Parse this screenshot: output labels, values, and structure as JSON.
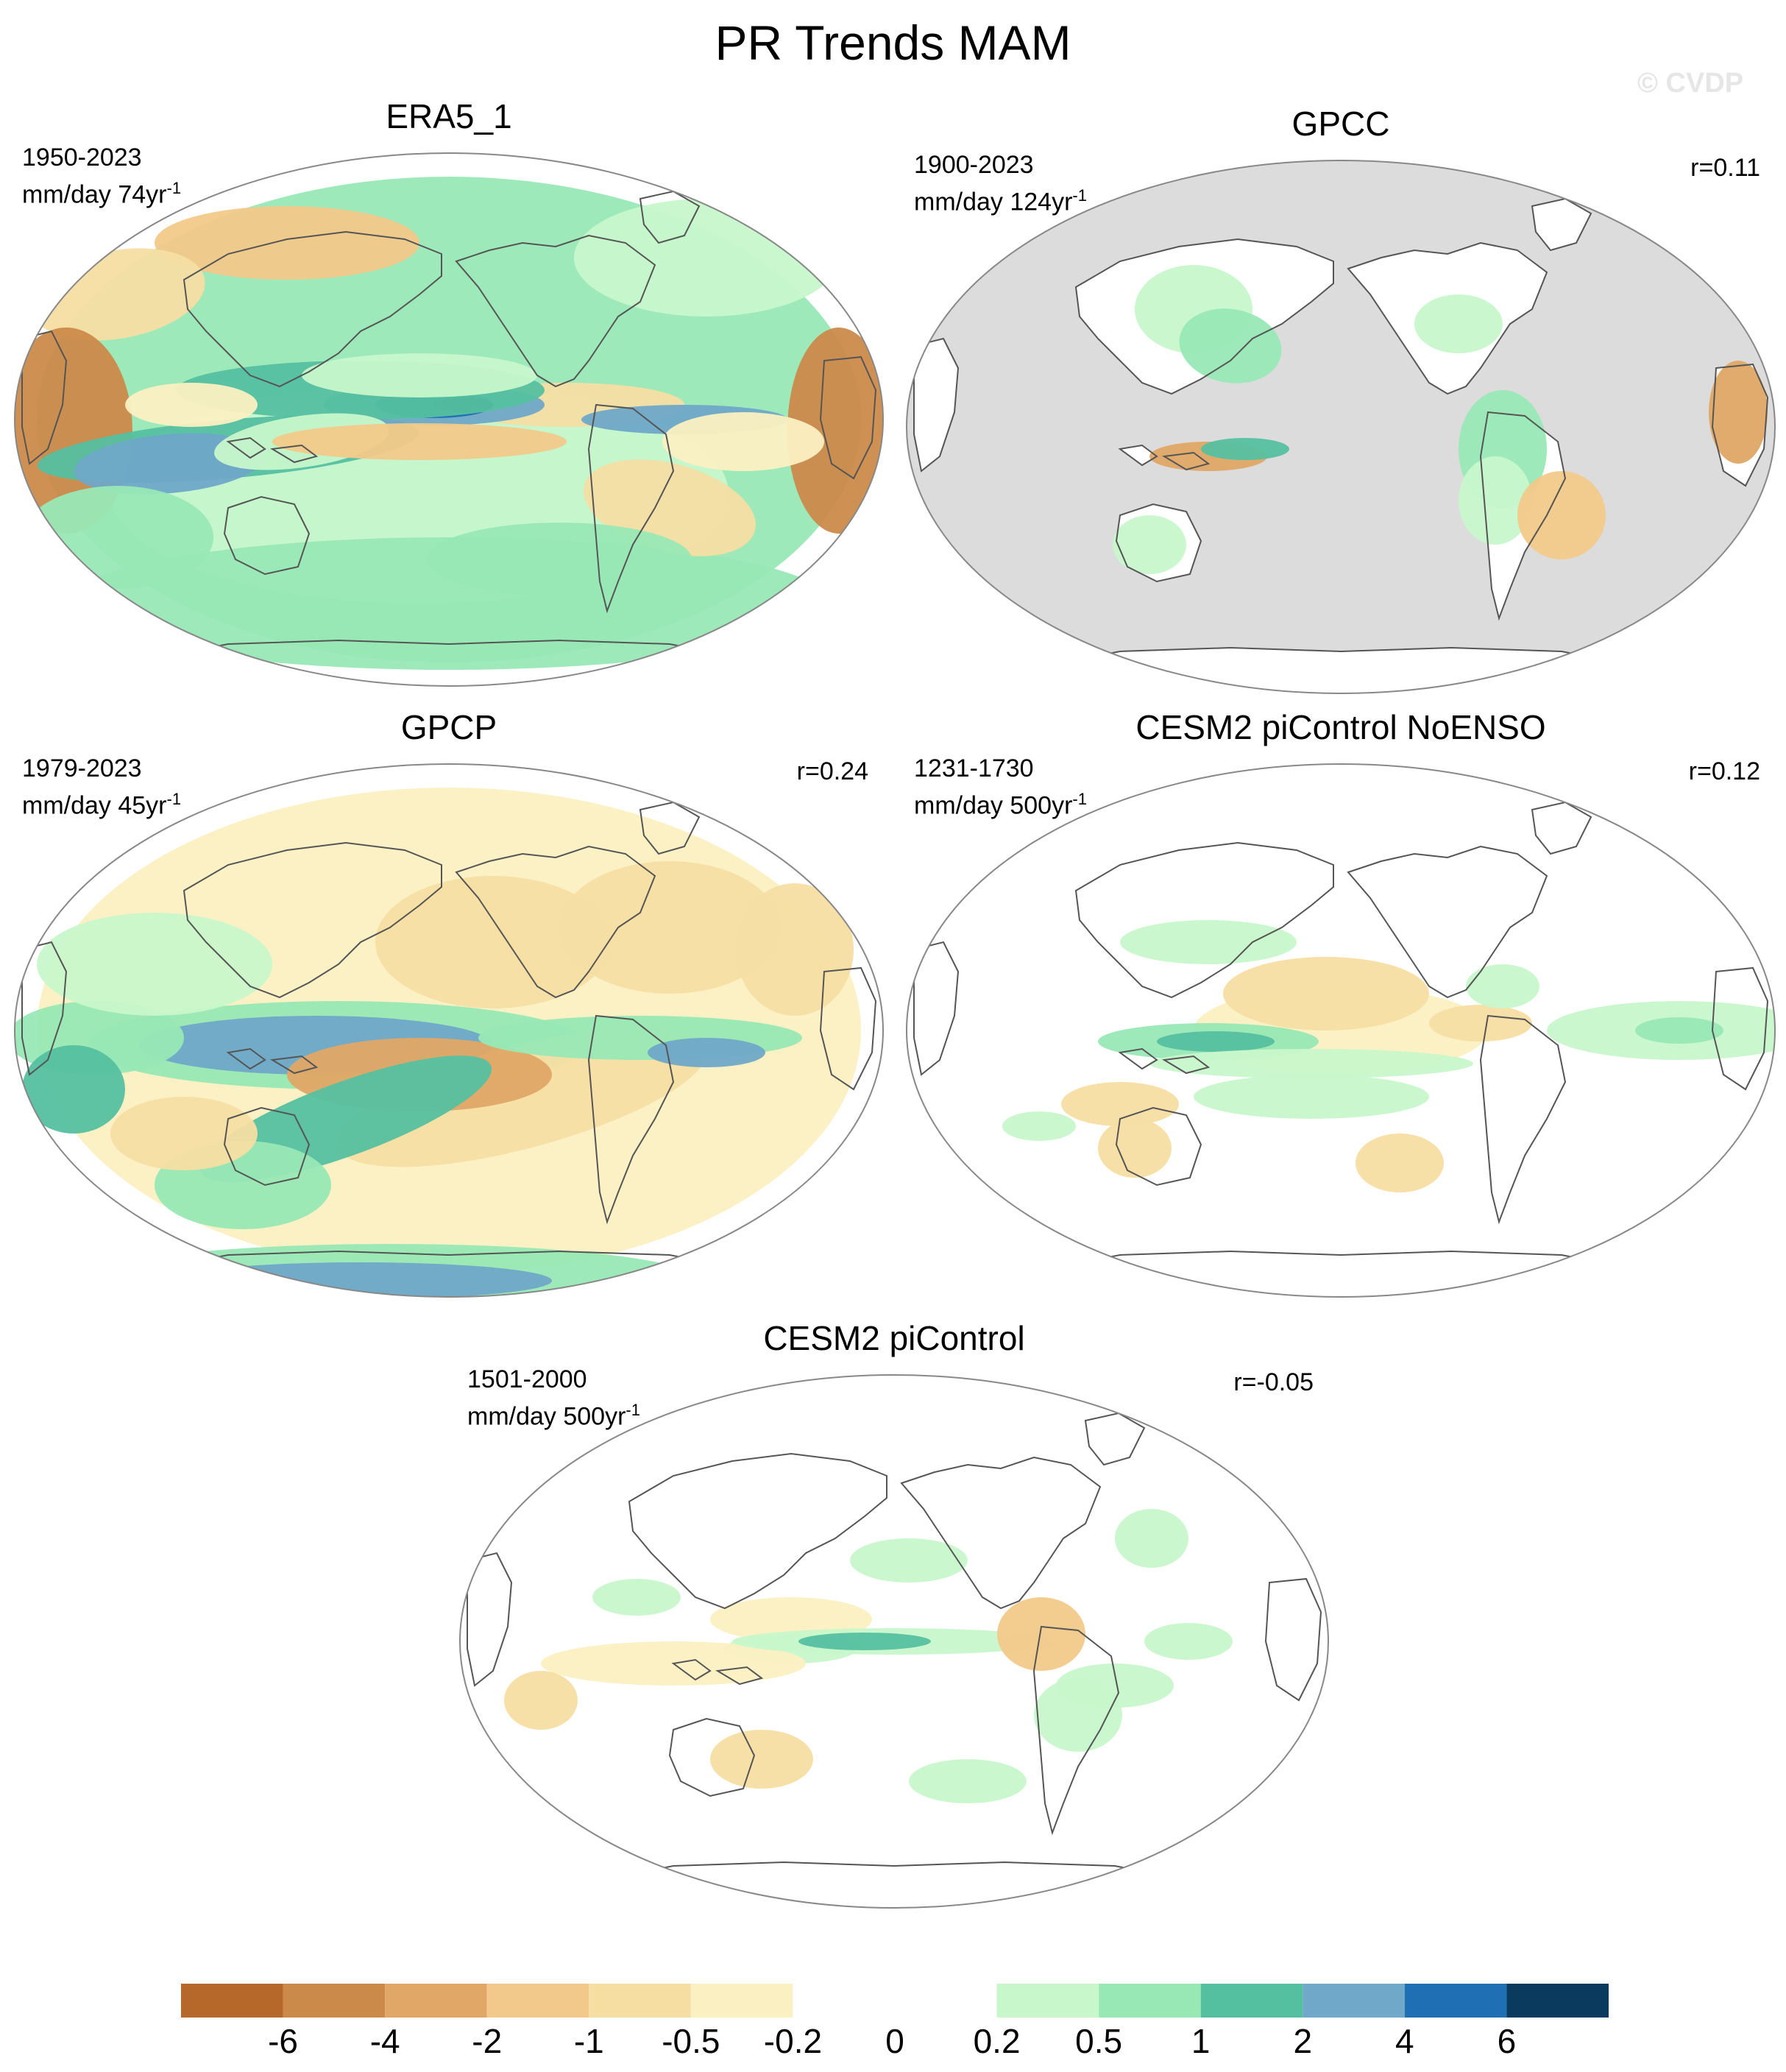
{
  "title": "PR Trends MAM",
  "copyright": "© CVDP",
  "panels": [
    {
      "title": "ERA5_1",
      "period": "1950-2023",
      "units": "mm/day 74yr",
      "units_sup": "-1",
      "corr": "",
      "missing_land_only": false,
      "pattern": "era5"
    },
    {
      "title": "GPCC",
      "period": "1900-2023",
      "units": "mm/day 124yr",
      "units_sup": "-1",
      "corr": "r=0.11",
      "missing_land_only": true,
      "pattern": "gpcc"
    },
    {
      "title": "GPCP",
      "period": "1979-2023",
      "units": "mm/day 45yr",
      "units_sup": "-1",
      "corr": "r=0.24",
      "missing_land_only": false,
      "pattern": "gpcp"
    },
    {
      "title": "CESM2 piControl NoENSO",
      "period": "1231-1730",
      "units": "mm/day 500yr",
      "units_sup": "-1",
      "corr": "r=0.12",
      "missing_land_only": false,
      "pattern": "noenso"
    },
    {
      "title": "CESM2 piControl",
      "period": "1501-2000",
      "units": "mm/day 500yr",
      "units_sup": "-1",
      "corr": "r=-0.05",
      "missing_land_only": false,
      "pattern": "picontrol"
    }
  ],
  "colorbar": {
    "colors": [
      "#b5682a",
      "#cc8a4a",
      "#e0a766",
      "#f2c98a",
      "#f6dea3",
      "#fbf0c2",
      "#ffffff",
      "#ffffff",
      "#c8f7cb",
      "#98e8b5",
      "#55c0a0",
      "#6fa8c8",
      "#1f6fb4",
      "#0a3a5e"
    ],
    "labels": [
      "-6",
      "-4",
      "-2",
      "-1",
      "-0.5",
      "-0.2",
      "0",
      "0.2",
      "0.5",
      "1",
      "2",
      "4",
      "6"
    ]
  },
  "missing_color": "#dcdcdc"
}
